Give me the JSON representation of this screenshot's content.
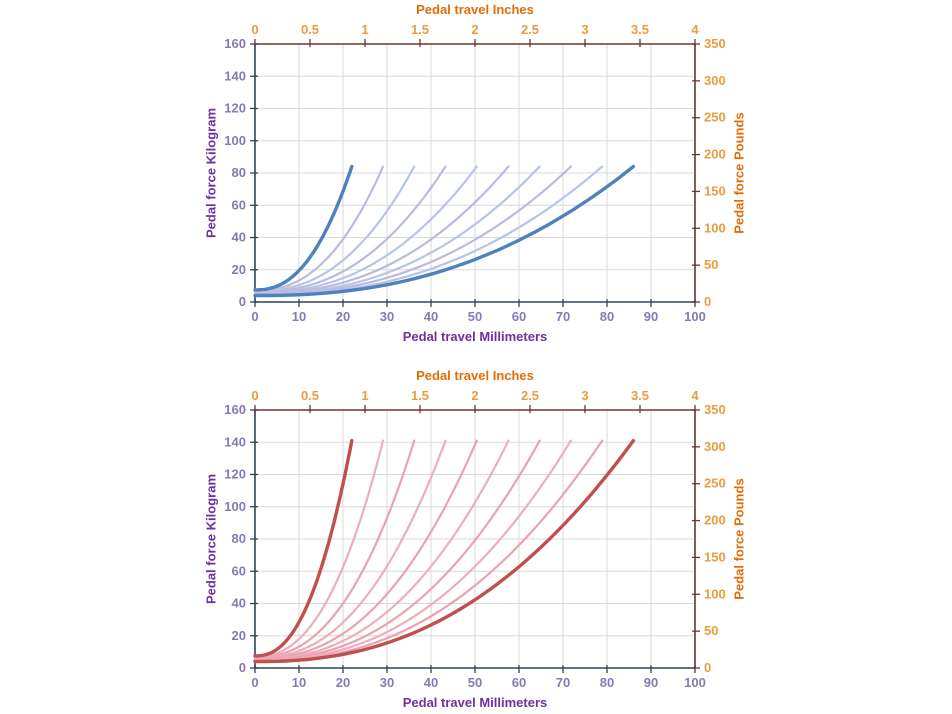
{
  "chart_data": [
    {
      "id": "pedal-force-vs-travel-blue",
      "type": "line",
      "grid": true,
      "legend": "none",
      "x_axis_bottom": {
        "label": "Pedal travel Millimeters",
        "range": [
          0,
          100
        ],
        "ticks": [
          0,
          10,
          20,
          30,
          40,
          50,
          60,
          70,
          80,
          90,
          100
        ]
      },
      "x_axis_top": {
        "label": "Pedal travel Inches",
        "range": [
          0,
          4
        ],
        "ticks": [
          "0",
          "0.5",
          "1",
          "1.5",
          "2",
          "2.5",
          "3",
          "3.5",
          "4"
        ]
      },
      "y_axis_left": {
        "label": "Pedal force Kilogram",
        "range": [
          0,
          160
        ],
        "ticks": [
          0,
          20,
          40,
          60,
          80,
          100,
          120,
          140,
          160
        ]
      },
      "y_axis_right": {
        "label": "Pedal force Pounds",
        "range": [
          0,
          350
        ],
        "ticks": [
          0,
          50,
          100,
          150,
          200,
          250,
          300,
          350
        ]
      },
      "curve_model": "y_kg(x) = y_start + (y_end - y_start) * (x / x_end_mm)^exponent, for x in [0, x_end_mm]",
      "series": [
        {
          "name": "curve-01",
          "x_end_mm": 22.0,
          "y_start_kg": 7.5,
          "y_end_kg": 84,
          "exponent": 2.35,
          "color": "#4F81BD",
          "width": 3.4,
          "emphasis": true
        },
        {
          "name": "curve-02",
          "x_end_mm": 29.1,
          "y_start_kg": 7.1,
          "y_end_kg": 84,
          "exponent": 2.35,
          "color": "#BDB9DE",
          "width": 2.2,
          "emphasis": false
        },
        {
          "name": "curve-03",
          "x_end_mm": 36.2,
          "y_start_kg": 6.7,
          "y_end_kg": 84,
          "exponent": 2.35,
          "color": "#B6C4E6",
          "width": 2.2,
          "emphasis": false
        },
        {
          "name": "curve-04",
          "x_end_mm": 43.3,
          "y_start_kg": 6.3,
          "y_end_kg": 84,
          "exponent": 2.35,
          "color": "#BDB9DE",
          "width": 2.2,
          "emphasis": false
        },
        {
          "name": "curve-05",
          "x_end_mm": 50.4,
          "y_start_kg": 5.9,
          "y_end_kg": 84,
          "exponent": 2.35,
          "color": "#B6C4E6",
          "width": 2.2,
          "emphasis": false
        },
        {
          "name": "curve-06",
          "x_end_mm": 57.6,
          "y_start_kg": 5.5,
          "y_end_kg": 84,
          "exponent": 2.35,
          "color": "#BDB9DE",
          "width": 2.2,
          "emphasis": false
        },
        {
          "name": "curve-07",
          "x_end_mm": 64.7,
          "y_start_kg": 5.1,
          "y_end_kg": 84,
          "exponent": 2.35,
          "color": "#B6C4E6",
          "width": 2.2,
          "emphasis": false
        },
        {
          "name": "curve-08",
          "x_end_mm": 71.8,
          "y_start_kg": 4.8,
          "y_end_kg": 84,
          "exponent": 2.35,
          "color": "#BDB9DE",
          "width": 2.2,
          "emphasis": false
        },
        {
          "name": "curve-09",
          "x_end_mm": 78.9,
          "y_start_kg": 4.4,
          "y_end_kg": 84,
          "exponent": 2.35,
          "color": "#B6C4E6",
          "width": 2.2,
          "emphasis": false
        },
        {
          "name": "curve-10",
          "x_end_mm": 86.0,
          "y_start_kg": 4.0,
          "y_end_kg": 84,
          "exponent": 2.35,
          "color": "#4F81BD",
          "width": 3.4,
          "emphasis": true
        }
      ],
      "colors": {
        "grid": "#D9D9D9",
        "axis_primary": "#2F4459",
        "axis_secondary": "#6E3234",
        "tick_label_primary": "#8878B4",
        "tick_label_secondary": "#EC9C3E",
        "title_primary": "#7030A0",
        "title_secondary": "#E46C09"
      }
    },
    {
      "id": "pedal-force-vs-travel-red",
      "type": "line",
      "grid": true,
      "legend": "none",
      "x_axis_bottom": {
        "label": "Pedal travel Millimeters",
        "range": [
          0,
          100
        ],
        "ticks": [
          0,
          10,
          20,
          30,
          40,
          50,
          60,
          70,
          80,
          90,
          100
        ]
      },
      "x_axis_top": {
        "label": "Pedal travel Inches",
        "range": [
          0,
          4
        ],
        "ticks": [
          "0",
          "0.5",
          "1",
          "1.5",
          "2",
          "2.5",
          "3",
          "3.5",
          "4"
        ]
      },
      "y_axis_left": {
        "label": "Pedal force Kilogram",
        "range": [
          0,
          160
        ],
        "ticks": [
          0,
          20,
          40,
          60,
          80,
          100,
          120,
          140,
          160
        ]
      },
      "y_axis_right": {
        "label": "Pedal force Pounds",
        "range": [
          0,
          350
        ],
        "ticks": [
          0,
          50,
          100,
          150,
          200,
          250,
          300,
          350
        ]
      },
      "curve_model": "y_kg(x) = y_start + (y_end - y_start) * (x / x_end_mm)^exponent, for x in [0, x_end_mm]",
      "series": [
        {
          "name": "curve-01",
          "x_end_mm": 22.0,
          "y_start_kg": 7.5,
          "y_end_kg": 141,
          "exponent": 2.35,
          "color": "#C0504D",
          "width": 3.4,
          "emphasis": true
        },
        {
          "name": "curve-02",
          "x_end_mm": 29.1,
          "y_start_kg": 7.1,
          "y_end_kg": 141,
          "exponent": 2.35,
          "color": "#EDAEBB",
          "width": 2.2,
          "emphasis": false
        },
        {
          "name": "curve-03",
          "x_end_mm": 36.2,
          "y_start_kg": 6.7,
          "y_end_kg": 141,
          "exponent": 2.35,
          "color": "#E9A2B1",
          "width": 2.2,
          "emphasis": false
        },
        {
          "name": "curve-04",
          "x_end_mm": 43.3,
          "y_start_kg": 6.3,
          "y_end_kg": 141,
          "exponent": 2.35,
          "color": "#EDAEBB",
          "width": 2.2,
          "emphasis": false
        },
        {
          "name": "curve-05",
          "x_end_mm": 50.4,
          "y_start_kg": 5.9,
          "y_end_kg": 141,
          "exponent": 2.35,
          "color": "#E9A2B1",
          "width": 2.2,
          "emphasis": false
        },
        {
          "name": "curve-06",
          "x_end_mm": 57.6,
          "y_start_kg": 5.5,
          "y_end_kg": 141,
          "exponent": 2.35,
          "color": "#EDAEBB",
          "width": 2.2,
          "emphasis": false
        },
        {
          "name": "curve-07",
          "x_end_mm": 64.7,
          "y_start_kg": 5.1,
          "y_end_kg": 141,
          "exponent": 2.35,
          "color": "#E9A2B1",
          "width": 2.2,
          "emphasis": false
        },
        {
          "name": "curve-08",
          "x_end_mm": 71.8,
          "y_start_kg": 4.8,
          "y_end_kg": 141,
          "exponent": 2.35,
          "color": "#EDAEBB",
          "width": 2.2,
          "emphasis": false
        },
        {
          "name": "curve-09",
          "x_end_mm": 78.9,
          "y_start_kg": 4.4,
          "y_end_kg": 141,
          "exponent": 2.35,
          "color": "#E9A2B1",
          "width": 2.2,
          "emphasis": false
        },
        {
          "name": "curve-10",
          "x_end_mm": 86.0,
          "y_start_kg": 4.0,
          "y_end_kg": 141,
          "exponent": 2.35,
          "color": "#C0504D",
          "width": 3.4,
          "emphasis": true
        }
      ],
      "colors": {
        "grid": "#D9D9D9",
        "axis_primary": "#2F4459",
        "axis_secondary": "#6E3234",
        "tick_label_primary": "#8878B4",
        "tick_label_secondary": "#EC9C3E",
        "title_primary": "#7030A0",
        "title_secondary": "#E46C09"
      }
    }
  ]
}
